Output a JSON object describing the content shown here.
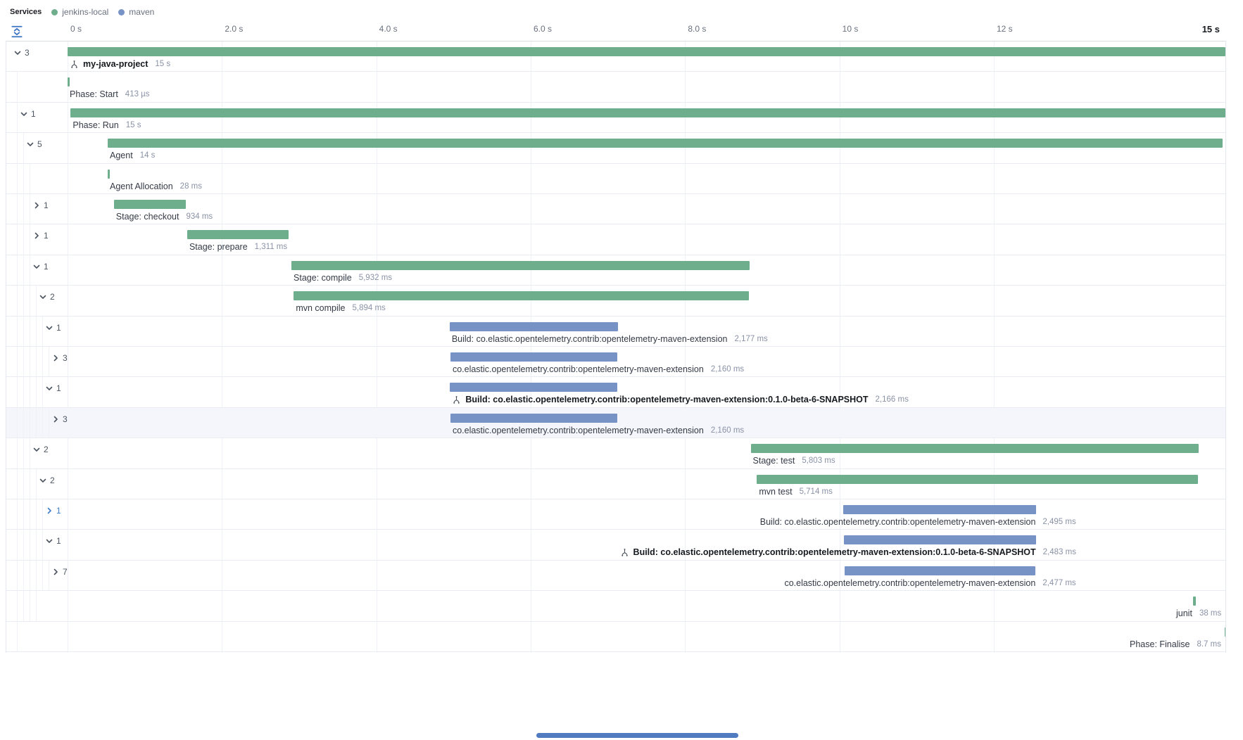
{
  "legend": {
    "title": "Services",
    "services": [
      {
        "name": "jenkins-local",
        "color": "#6fae8c"
      },
      {
        "name": "maven",
        "color": "#7792c5"
      }
    ]
  },
  "timeline": {
    "total_duration_s": 15,
    "ticks": [
      {
        "t": 0,
        "label": "0 s"
      },
      {
        "t": 2,
        "label": "2.0 s"
      },
      {
        "t": 4,
        "label": "4.0 s"
      },
      {
        "t": 6,
        "label": "6.0 s"
      },
      {
        "t": 8,
        "label": "8.0 s"
      },
      {
        "t": 10,
        "label": "10 s"
      },
      {
        "t": 12,
        "label": "12 s"
      },
      {
        "t": 15,
        "label": "15 s",
        "emphasis": true
      }
    ]
  },
  "waterfall": {
    "rows": [
      {
        "label": "my-java-project",
        "duration": "15 s",
        "service": "jenkins-local",
        "start_s": 0,
        "duration_s": 15,
        "depth": 0,
        "expander": "expanded",
        "child_count": 3,
        "bold": true,
        "icon": true,
        "align": "left"
      },
      {
        "label": "Phase: Start",
        "duration": "413 µs",
        "service": "jenkins-local",
        "start_s": 0,
        "duration_s": 0.0004,
        "depth": 1,
        "expander": null,
        "align": "left"
      },
      {
        "label": "Phase: Run",
        "duration": "15 s",
        "service": "jenkins-local",
        "start_s": 0.04,
        "duration_s": 14.96,
        "depth": 1,
        "expander": "expanded",
        "child_count": 1,
        "align": "left"
      },
      {
        "label": "Agent",
        "duration": "14 s",
        "service": "jenkins-local",
        "start_s": 0.52,
        "duration_s": 14.44,
        "depth": 2,
        "expander": "expanded",
        "child_count": 5,
        "align": "left"
      },
      {
        "label": "Agent Allocation",
        "duration": "28 ms",
        "service": "jenkins-local",
        "start_s": 0.52,
        "duration_s": 0.028,
        "depth": 3,
        "expander": null,
        "align": "left"
      },
      {
        "label": "Stage: checkout",
        "duration": "934 ms",
        "service": "jenkins-local",
        "start_s": 0.6,
        "duration_s": 0.934,
        "depth": 3,
        "expander": "collapsed",
        "child_count": 1,
        "align": "left"
      },
      {
        "label": "Stage: prepare",
        "duration": "1,311 ms",
        "service": "jenkins-local",
        "start_s": 1.55,
        "duration_s": 1.311,
        "depth": 3,
        "expander": "collapsed",
        "child_count": 1,
        "align": "left"
      },
      {
        "label": "Stage: compile",
        "duration": "5,932 ms",
        "service": "jenkins-local",
        "start_s": 2.9,
        "duration_s": 5.932,
        "depth": 3,
        "expander": "expanded",
        "child_count": 1,
        "align": "left"
      },
      {
        "label": "mvn compile",
        "duration": "5,894 ms",
        "service": "jenkins-local",
        "start_s": 2.93,
        "duration_s": 5.894,
        "depth": 4,
        "expander": "expanded",
        "child_count": 2,
        "align": "left"
      },
      {
        "label": "Build: co.elastic.opentelemetry.contrib:opentelemetry-maven-extension",
        "duration": "2,177 ms",
        "service": "maven",
        "start_s": 4.95,
        "duration_s": 2.177,
        "depth": 5,
        "expander": "expanded",
        "child_count": 1,
        "align": "left"
      },
      {
        "label": "co.elastic.opentelemetry.contrib:opentelemetry-maven-extension",
        "duration": "2,160 ms",
        "service": "maven",
        "start_s": 4.96,
        "duration_s": 2.16,
        "depth": 6,
        "expander": "collapsed",
        "child_count": 3,
        "align": "left"
      },
      {
        "label": "Build: co.elastic.opentelemetry.contrib:opentelemetry-maven-extension:0.1.0-beta-6-SNAPSHOT",
        "duration": "2,166 ms",
        "service": "maven",
        "start_s": 4.955,
        "duration_s": 2.166,
        "depth": 5,
        "expander": "expanded",
        "child_count": 1,
        "bold": true,
        "icon": true,
        "align": "left"
      },
      {
        "label": "co.elastic.opentelemetry.contrib:opentelemetry-maven-extension",
        "duration": "2,160 ms",
        "service": "maven",
        "start_s": 4.96,
        "duration_s": 2.16,
        "depth": 6,
        "expander": "collapsed",
        "child_count": 3,
        "selected": true,
        "align": "left"
      },
      {
        "label": "Stage: test",
        "duration": "5,803 ms",
        "service": "jenkins-local",
        "start_s": 8.85,
        "duration_s": 5.803,
        "depth": 3,
        "expander": "expanded",
        "child_count": 2,
        "align": "left"
      },
      {
        "label": "mvn test",
        "duration": "5,714 ms",
        "service": "jenkins-local",
        "start_s": 8.93,
        "duration_s": 5.714,
        "depth": 4,
        "expander": "expanded",
        "child_count": 2,
        "align": "left"
      },
      {
        "label": "Build: co.elastic.opentelemetry.contrib:opentelemetry-maven-extension",
        "duration": "2,495 ms",
        "service": "maven",
        "start_s": 10.05,
        "duration_s": 2.495,
        "depth": 5,
        "expander": "collapsed",
        "child_count": 1,
        "accent": true,
        "align": "right"
      },
      {
        "label": "Build: co.elastic.opentelemetry.contrib:opentelemetry-maven-extension:0.1.0-beta-6-SNAPSHOT",
        "duration": "2,483 ms",
        "service": "maven",
        "start_s": 10.06,
        "duration_s": 2.483,
        "depth": 5,
        "expander": "expanded",
        "child_count": 1,
        "bold": true,
        "icon": true,
        "align": "right"
      },
      {
        "label": "co.elastic.opentelemetry.contrib:opentelemetry-maven-extension",
        "duration": "2,477 ms",
        "service": "maven",
        "start_s": 10.065,
        "duration_s": 2.477,
        "depth": 6,
        "expander": "collapsed",
        "child_count": 7,
        "align": "right"
      },
      {
        "label": "junit",
        "duration": "38 ms",
        "service": "jenkins-local",
        "start_s": 14.58,
        "duration_s": 0.038,
        "depth": 4,
        "expander": null,
        "align": "right"
      },
      {
        "label": "Phase: Finalise",
        "duration": "8.7 ms",
        "service": "jenkins-local",
        "start_s": 14.99,
        "duration_s": 0.0087,
        "depth": 1,
        "expander": null,
        "align": "right"
      }
    ]
  }
}
